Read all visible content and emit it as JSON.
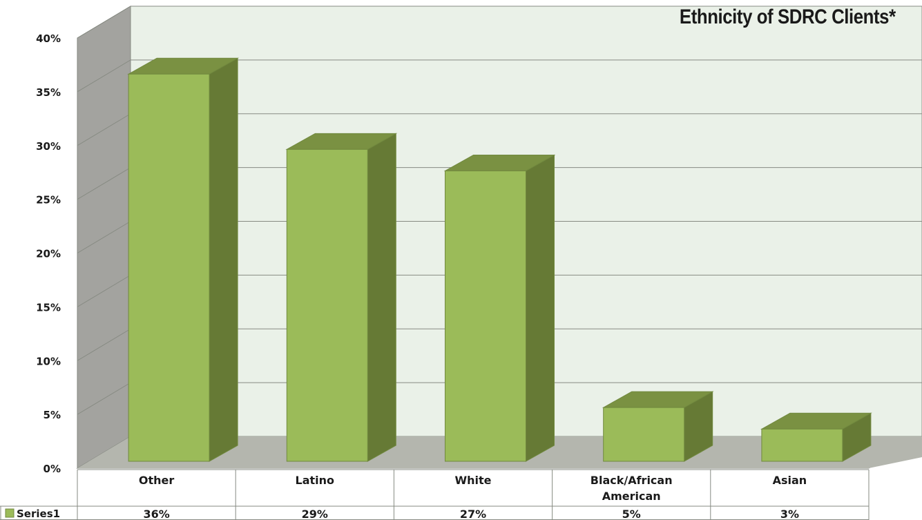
{
  "chart_data": {
    "type": "bar",
    "title": "Ethnicity of SDRC Clients*",
    "categories": [
      "Other",
      "Latino",
      "White",
      "Black/African American",
      "Asian"
    ],
    "series": [
      {
        "name": "Series1",
        "values": [
          36,
          29,
          27,
          5,
          3
        ],
        "labels": [
          "36%",
          "29%",
          "27%",
          "5%",
          "3%"
        ]
      }
    ],
    "y_ticks": [
      "0%",
      "5%",
      "10%",
      "15%",
      "20%",
      "25%",
      "30%",
      "35%",
      "40%"
    ],
    "ylim": [
      0,
      40
    ],
    "grid": true,
    "data_table": true,
    "colors": {
      "bar_front": "#9bbb59",
      "bar_side": "#667a35",
      "bar_top": "#7a9142",
      "bar_edge": "#71893f",
      "wall": "#eaf1e8",
      "side_wall": "#a3a39f",
      "floor": "#b4b6ae",
      "grid": "#868a82"
    }
  }
}
